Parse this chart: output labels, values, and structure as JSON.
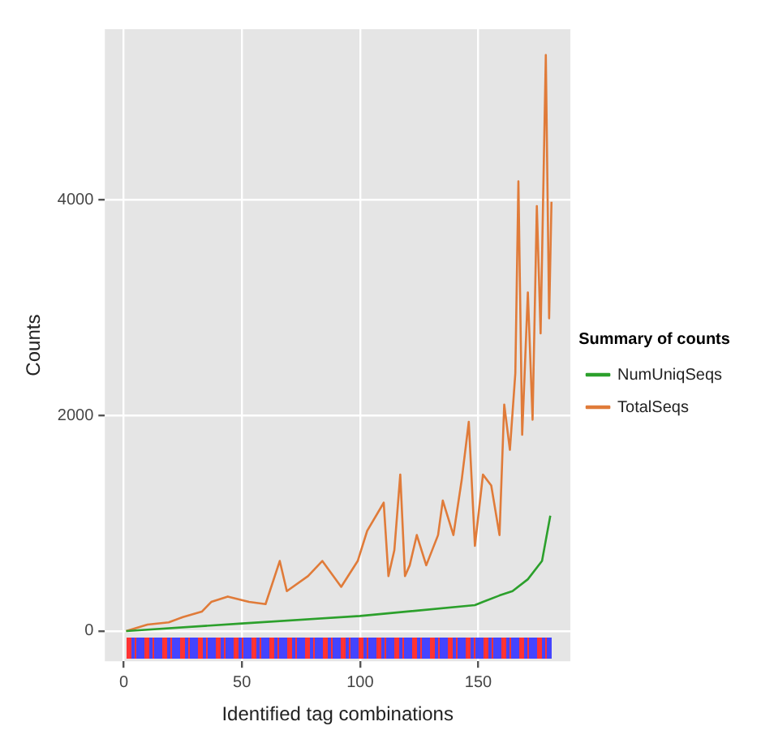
{
  "chart_data": {
    "type": "line",
    "xlabel": "Identified tag combinations",
    "ylabel": "Counts",
    "legend_title": "Summary of counts",
    "legend": "right",
    "grid": true,
    "marker": "none",
    "xlim": [
      -8,
      189
    ],
    "xticks": [
      0,
      50,
      100,
      150
    ],
    "ylim": [
      -280,
      5580
    ],
    "yticks": [
      0,
      2000,
      4000
    ],
    "series": [
      {
        "name": "NumUniqSeqs",
        "color": "#2ca02c",
        "x": [
          1,
          50,
          100,
          148.6,
          152,
          159,
          164.5,
          171,
          177,
          180.5
        ],
        "values": [
          0,
          70,
          140,
          240,
          270,
          330,
          370,
          480,
          650,
          1070
        ]
      },
      {
        "name": "TotalSeqs",
        "color": "#e07b39",
        "x": [
          1,
          10,
          19,
          25,
          33,
          37,
          44,
          53,
          60,
          66,
          69,
          78,
          84,
          92,
          99,
          103,
          110,
          112,
          114.5,
          117,
          119,
          121,
          124,
          128,
          133,
          135,
          139.5,
          143,
          146,
          148.6,
          152,
          155.5,
          159,
          161,
          163.4,
          165.7,
          167,
          168.6,
          171,
          173,
          174.8,
          176.4,
          178.6,
          180,
          181
        ],
        "values": [
          0,
          60,
          80,
          130,
          180,
          270,
          320,
          270,
          250,
          650,
          370,
          510,
          650,
          410,
          650,
          930,
          1190,
          510,
          750,
          1450,
          510,
          610,
          890,
          610,
          890,
          1210,
          890,
          1400,
          1940,
          790,
          1450,
          1350,
          890,
          2100,
          1680,
          2390,
          4170,
          1820,
          3140,
          1960,
          3940,
          2760,
          5340,
          2900,
          3980
        ]
      }
    ]
  }
}
